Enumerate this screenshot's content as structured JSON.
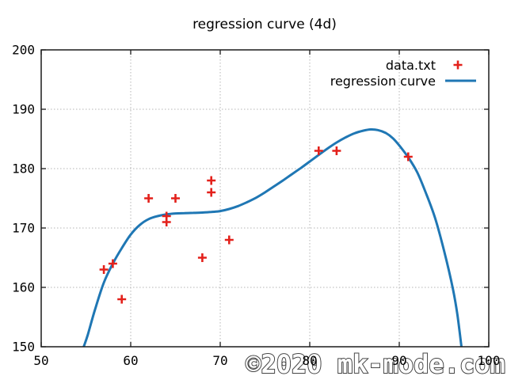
{
  "title": "regression curve (4d)",
  "watermark": "©2020 mk-mode.com",
  "colors": {
    "data_points": "#e3211b",
    "regression_curve": "#1f77b4",
    "grid": "#b5b5b5",
    "axis": "#1a1a1a",
    "text": "#000000",
    "watermark_fill": "#ffffff",
    "watermark_outline": "#3c3c3c"
  },
  "legend": {
    "position": "top-right",
    "entries": [
      {
        "label": "data.txt",
        "marker": "plus"
      },
      {
        "label": "regression curve",
        "marker": "line"
      }
    ]
  },
  "chart_data": {
    "type": "scatter",
    "title": "regression curve (4d)",
    "xlabel": "",
    "ylabel": "",
    "xlim": [
      50,
      100
    ],
    "ylim": [
      150,
      200
    ],
    "xticks": [
      50,
      60,
      70,
      80,
      90,
      100
    ],
    "yticks": [
      150,
      160,
      170,
      180,
      190,
      200
    ],
    "grid": true,
    "legend_position": "top-right",
    "series": [
      {
        "name": "data.txt",
        "type": "scatter",
        "marker": "plus",
        "color": "#e3211b",
        "points": [
          [
            57,
            163
          ],
          [
            58,
            164
          ],
          [
            59,
            158
          ],
          [
            62,
            175
          ],
          [
            64,
            172
          ],
          [
            64,
            171
          ],
          [
            65,
            175
          ],
          [
            68,
            165
          ],
          [
            69,
            178
          ],
          [
            69,
            176
          ],
          [
            71,
            168
          ],
          [
            81,
            183
          ],
          [
            83,
            183
          ],
          [
            91,
            182
          ]
        ]
      },
      {
        "name": "regression curve",
        "type": "line",
        "color": "#1f77b4",
        "description": "4th-degree polynomial regression curve sampled from plot",
        "points": [
          [
            54.75,
            150.0
          ],
          [
            55.2,
            152.0
          ],
          [
            56,
            156.2
          ],
          [
            57,
            160.8
          ],
          [
            58,
            164.0
          ],
          [
            59,
            166.6
          ],
          [
            60,
            168.9
          ],
          [
            61,
            170.5
          ],
          [
            62,
            171.5
          ],
          [
            63,
            172.0
          ],
          [
            64,
            172.3
          ],
          [
            65,
            172.45
          ],
          [
            66,
            172.5
          ],
          [
            67,
            172.55
          ],
          [
            68,
            172.6
          ],
          [
            69,
            172.7
          ],
          [
            70,
            172.85
          ],
          [
            71,
            173.2
          ],
          [
            72,
            173.7
          ],
          [
            73,
            174.35
          ],
          [
            74,
            175.1
          ],
          [
            75,
            176.0
          ],
          [
            76,
            177.0
          ],
          [
            77,
            178.0
          ],
          [
            78,
            179.05
          ],
          [
            79,
            180.1
          ],
          [
            80,
            181.2
          ],
          [
            81,
            182.3
          ],
          [
            82,
            183.4
          ],
          [
            83,
            184.4
          ],
          [
            84,
            185.25
          ],
          [
            85,
            185.95
          ],
          [
            86,
            186.4
          ],
          [
            86.8,
            186.6
          ],
          [
            87.6,
            186.5
          ],
          [
            88.5,
            186.0
          ],
          [
            89.3,
            185.1
          ],
          [
            90,
            183.9
          ],
          [
            91,
            181.9
          ],
          [
            92,
            179.4
          ],
          [
            93,
            175.8
          ],
          [
            94,
            171.7
          ],
          [
            95,
            166.2
          ],
          [
            96,
            159.7
          ],
          [
            96.5,
            155.3
          ],
          [
            96.95,
            150.0
          ]
        ]
      }
    ]
  }
}
